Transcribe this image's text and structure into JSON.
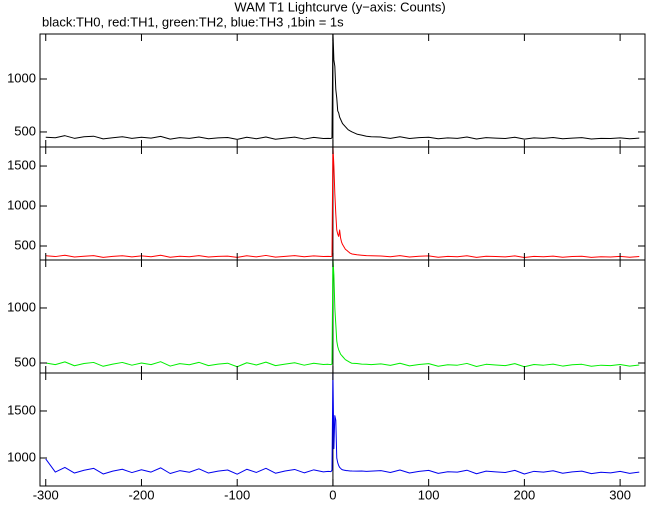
{
  "chart_data": [
    {
      "type": "line",
      "title": "WAM T1 Lightcurve (y−axis: Counts)",
      "subtitle": "black:TH0, red:TH1, green:TH2, blue:TH3 ,1bin = 1s",
      "color": "#000000",
      "xlim": [
        -306,
        326
      ],
      "xticks": [
        -300,
        -200,
        -100,
        0,
        100,
        200,
        300
      ],
      "ylim": [
        358,
        1425
      ],
      "yticks": [
        500,
        1000
      ],
      "vline": 0,
      "x": [
        -300,
        -290,
        -280,
        -270,
        -260,
        -250,
        -240,
        -230,
        -220,
        -210,
        -200,
        -190,
        -180,
        -170,
        -160,
        -150,
        -140,
        -130,
        -120,
        -110,
        -100,
        -90,
        -80,
        -70,
        -60,
        -50,
        -40,
        -30,
        -20,
        -10,
        -5,
        -2,
        -1,
        0,
        1,
        2,
        3,
        4,
        5,
        6,
        7,
        8,
        9,
        10,
        11,
        12,
        13,
        14,
        15,
        16,
        17,
        18,
        19,
        20,
        25,
        30,
        35,
        40,
        50,
        60,
        70,
        80,
        90,
        100,
        110,
        120,
        130,
        140,
        150,
        160,
        170,
        180,
        190,
        200,
        210,
        220,
        230,
        240,
        250,
        260,
        270,
        280,
        290,
        300,
        310,
        320
      ],
      "values": [
        450,
        445,
        465,
        440,
        455,
        460,
        435,
        445,
        455,
        440,
        450,
        442,
        458,
        432,
        446,
        440,
        452,
        436,
        444,
        448,
        430,
        450,
        436,
        452,
        431,
        442,
        451,
        433,
        449,
        438,
        440,
        438,
        445,
        1450,
        1180,
        1120,
        900,
        820,
        700,
        680,
        640,
        620,
        600,
        580,
        570,
        560,
        550,
        540,
        530,
        520,
        515,
        510,
        505,
        500,
        480,
        470,
        460,
        455,
        452,
        440,
        455,
        438,
        446,
        450,
        436,
        444,
        440,
        452,
        434,
        446,
        442,
        438,
        450,
        432,
        444,
        440,
        448,
        436,
        442,
        446,
        434,
        440,
        438,
        444,
        436,
        442
      ]
    },
    {
      "type": "line",
      "color": "#ff0000",
      "xlim": [
        -306,
        326
      ],
      "xticks": [
        -300,
        -200,
        -100,
        0,
        100,
        200,
        300
      ],
      "ylim": [
        325,
        1738
      ],
      "yticks": [
        500,
        1000,
        1500
      ],
      "vline": 0,
      "x": [
        -300,
        -290,
        -280,
        -270,
        -260,
        -250,
        -240,
        -230,
        -220,
        -210,
        -200,
        -190,
        -180,
        -170,
        -160,
        -150,
        -140,
        -130,
        -120,
        -110,
        -100,
        -90,
        -80,
        -70,
        -60,
        -50,
        -40,
        -30,
        -20,
        -10,
        -5,
        -2,
        -1,
        0,
        1,
        2,
        3,
        4,
        5,
        6,
        7,
        8,
        9,
        10,
        11,
        12,
        13,
        14,
        15,
        16,
        17,
        18,
        19,
        20,
        25,
        30,
        35,
        40,
        50,
        60,
        70,
        80,
        90,
        100,
        110,
        120,
        130,
        140,
        150,
        160,
        170,
        180,
        190,
        200,
        210,
        220,
        230,
        240,
        250,
        260,
        270,
        280,
        290,
        300,
        310,
        320
      ],
      "values": [
        378,
        368,
        385,
        362,
        372,
        380,
        358,
        370,
        378,
        364,
        376,
        366,
        384,
        360,
        372,
        366,
        380,
        362,
        370,
        374,
        358,
        378,
        364,
        382,
        361,
        370,
        379,
        365,
        377,
        368,
        370,
        368,
        372,
        1750,
        1500,
        1150,
        900,
        700,
        650,
        620,
        700,
        600,
        550,
        520,
        500,
        480,
        460,
        450,
        440,
        430,
        420,
        410,
        405,
        400,
        390,
        385,
        380,
        378,
        375,
        366,
        380,
        362,
        372,
        376,
        360,
        370,
        366,
        378,
        358,
        372,
        368,
        364,
        376,
        356,
        370,
        366,
        374,
        360,
        368,
        372,
        358,
        366,
        362,
        370,
        360,
        368
      ]
    },
    {
      "type": "line",
      "color": "#00ee00",
      "xlim": [
        -306,
        326
      ],
      "xticks": [
        -300,
        -200,
        -100,
        0,
        100,
        200,
        300
      ],
      "ylim": [
        409,
        1436
      ],
      "yticks": [
        500,
        1000
      ],
      "vline": 0,
      "x": [
        -300,
        -290,
        -280,
        -270,
        -260,
        -250,
        -240,
        -230,
        -220,
        -210,
        -200,
        -190,
        -180,
        -170,
        -160,
        -150,
        -140,
        -130,
        -120,
        -110,
        -100,
        -90,
        -80,
        -70,
        -60,
        -50,
        -40,
        -30,
        -20,
        -10,
        -5,
        -2,
        -1,
        0,
        1,
        2,
        3,
        4,
        5,
        6,
        7,
        8,
        9,
        10,
        11,
        12,
        13,
        14,
        15,
        16,
        17,
        18,
        19,
        20,
        25,
        30,
        35,
        40,
        50,
        60,
        70,
        80,
        90,
        100,
        110,
        120,
        130,
        140,
        150,
        160,
        170,
        180,
        190,
        200,
        210,
        220,
        230,
        240,
        250,
        260,
        270,
        280,
        290,
        300,
        310,
        320
      ],
      "values": [
        500,
        485,
        510,
        475,
        495,
        505,
        470,
        490,
        505,
        480,
        500,
        485,
        512,
        472,
        494,
        484,
        506,
        476,
        490,
        498,
        466,
        502,
        482,
        508,
        476,
        490,
        502,
        480,
        498,
        486,
        488,
        485,
        492,
        1450,
        1300,
        1000,
        850,
        700,
        650,
        620,
        600,
        580,
        570,
        560,
        550,
        540,
        530,
        525,
        520,
        515,
        510,
        505,
        500,
        498,
        495,
        490,
        488,
        485,
        492,
        478,
        498,
        474,
        486,
        494,
        470,
        484,
        480,
        496,
        468,
        488,
        482,
        476,
        494,
        466,
        486,
        480,
        490,
        472,
        484,
        488,
        470,
        480,
        476,
        486,
        472,
        482
      ]
    },
    {
      "type": "line",
      "color": "#0000ee",
      "xlim": [
        -306,
        326
      ],
      "xticks": [
        -300,
        -200,
        -100,
        0,
        100,
        200,
        300
      ],
      "ylim": [
        702,
        1904
      ],
      "yticks": [
        1000,
        1500
      ],
      "vline": 0,
      "x": [
        -300,
        -290,
        -280,
        -270,
        -260,
        -250,
        -240,
        -230,
        -220,
        -210,
        -200,
        -190,
        -180,
        -170,
        -160,
        -150,
        -140,
        -130,
        -120,
        -110,
        -100,
        -90,
        -80,
        -70,
        -60,
        -50,
        -40,
        -30,
        -20,
        -10,
        -5,
        -2,
        -1,
        0,
        1,
        2,
        3,
        4,
        5,
        6,
        7,
        8,
        9,
        10,
        11,
        12,
        13,
        14,
        15,
        16,
        17,
        18,
        19,
        20,
        25,
        30,
        35,
        40,
        50,
        60,
        70,
        80,
        90,
        100,
        110,
        120,
        130,
        140,
        150,
        160,
        170,
        180,
        190,
        200,
        210,
        220,
        230,
        240,
        250,
        260,
        270,
        280,
        290,
        300,
        310,
        320
      ],
      "values": [
        990,
        850,
        900,
        840,
        870,
        890,
        830,
        860,
        880,
        845,
        875,
        850,
        895,
        835,
        865,
        848,
        885,
        840,
        860,
        872,
        828,
        880,
        846,
        890,
        838,
        862,
        878,
        842,
        874,
        852,
        858,
        855,
        870,
        1900,
        1100,
        1450,
        1400,
        1000,
        950,
        920,
        900,
        890,
        880,
        875,
        872,
        870,
        868,
        866,
        865,
        864,
        863,
        862,
        862,
        861,
        860,
        862,
        858,
        860,
        866,
        846,
        872,
        840,
        858,
        868,
        836,
        854,
        850,
        870,
        832,
        860,
        852,
        846,
        868,
        830,
        858,
        850,
        864,
        838,
        852,
        860,
        834,
        848,
        842,
        858,
        836,
        850
      ]
    }
  ]
}
